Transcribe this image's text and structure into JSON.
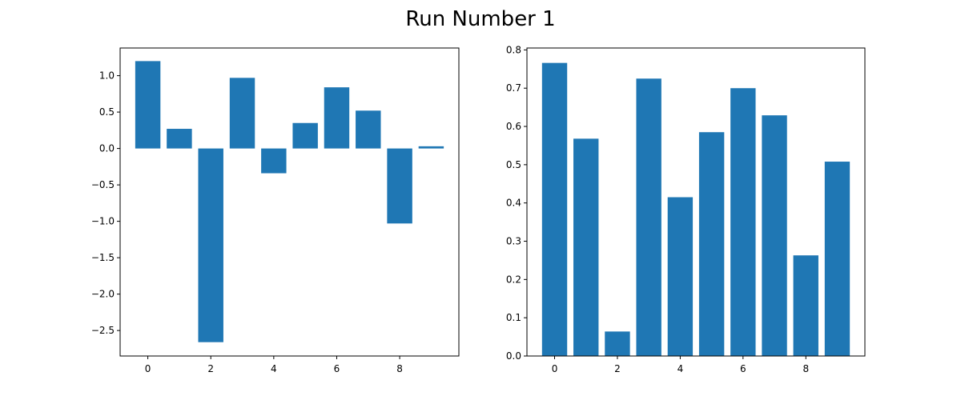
{
  "figure": {
    "suptitle": "Run Number 1"
  },
  "chart_data": [
    {
      "type": "bar",
      "x": [
        0,
        1,
        2,
        3,
        4,
        5,
        6,
        7,
        8,
        9
      ],
      "values": [
        1.2,
        0.27,
        -2.66,
        0.97,
        -0.34,
        0.35,
        0.84,
        0.52,
        -1.03,
        0.03
      ],
      "xlim": [
        -0.88,
        9.88
      ],
      "ylim": [
        -2.85,
        1.38
      ],
      "xticks": [
        0,
        2,
        4,
        6,
        8
      ],
      "xtick_labels": [
        "0",
        "2",
        "4",
        "6",
        "8"
      ],
      "yticks": [
        1.0,
        0.5,
        0.0,
        -0.5,
        -1.0,
        -1.5,
        -2.0,
        -2.5
      ],
      "ytick_labels": [
        "1.0",
        "0.5",
        "0.0",
        "−0.5",
        "−1.0",
        "−1.5",
        "−2.0",
        "−2.5"
      ],
      "color": "#1f77b4",
      "title": "",
      "xlabel": "",
      "ylabel": "",
      "grid": false
    },
    {
      "type": "bar",
      "x": [
        0,
        1,
        2,
        3,
        4,
        5,
        6,
        7,
        8,
        9
      ],
      "values": [
        0.766,
        0.568,
        0.064,
        0.725,
        0.415,
        0.585,
        0.7,
        0.629,
        0.263,
        0.508
      ],
      "xlim": [
        -0.88,
        9.88
      ],
      "ylim": [
        0,
        0.805
      ],
      "xticks": [
        0,
        2,
        4,
        6,
        8
      ],
      "xtick_labels": [
        "0",
        "2",
        "4",
        "6",
        "8"
      ],
      "yticks": [
        0.0,
        0.1,
        0.2,
        0.3,
        0.4,
        0.5,
        0.6,
        0.7,
        0.8
      ],
      "ytick_labels": [
        "0.0",
        "0.1",
        "0.2",
        "0.3",
        "0.4",
        "0.5",
        "0.6",
        "0.7",
        "0.8"
      ],
      "color": "#1f77b4",
      "title": "",
      "xlabel": "",
      "ylabel": "",
      "grid": false
    }
  ]
}
